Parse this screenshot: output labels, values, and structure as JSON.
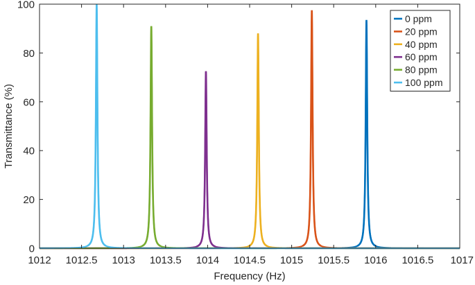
{
  "chart_data": {
    "type": "line",
    "xlabel": "Frequency (Hz)",
    "ylabel": "Transmittance (%)",
    "xlim": [
      1012,
      1017
    ],
    "ylim": [
      0,
      100
    ],
    "xticks": [
      1012,
      1012.5,
      1013,
      1013.5,
      1014,
      1014.5,
      1015,
      1015.5,
      1016,
      1016.5,
      1017
    ],
    "xtick_labels": [
      "1012",
      "1012.5",
      "1013",
      "1013.5",
      "1014",
      "1014.5",
      "1015",
      "1015.5",
      "1016",
      "1016.5",
      "1017"
    ],
    "yticks": [
      0,
      20,
      40,
      60,
      80,
      100
    ],
    "ytick_labels": [
      "0",
      "20",
      "40",
      "60",
      "80",
      "100"
    ],
    "grid": false,
    "legend_position": "top-right",
    "series": [
      {
        "name": "0 ppm",
        "color": "#0072BD",
        "peak_x": 1015.89,
        "peak_y": 93.5
      },
      {
        "name": "20 ppm",
        "color": "#D95319",
        "peak_x": 1015.24,
        "peak_y": 97.5
      },
      {
        "name": "40 ppm",
        "color": "#EDB120",
        "peak_x": 1014.6,
        "peak_y": 88
      },
      {
        "name": "60 ppm",
        "color": "#7E2F8E",
        "peak_x": 1013.98,
        "peak_y": 72.5
      },
      {
        "name": "80 ppm",
        "color": "#77AC30",
        "peak_x": 1013.33,
        "peak_y": 91
      },
      {
        "name": "100 ppm",
        "color": "#4DBEEE",
        "peak_x": 1012.68,
        "peak_y": 100
      }
    ]
  }
}
